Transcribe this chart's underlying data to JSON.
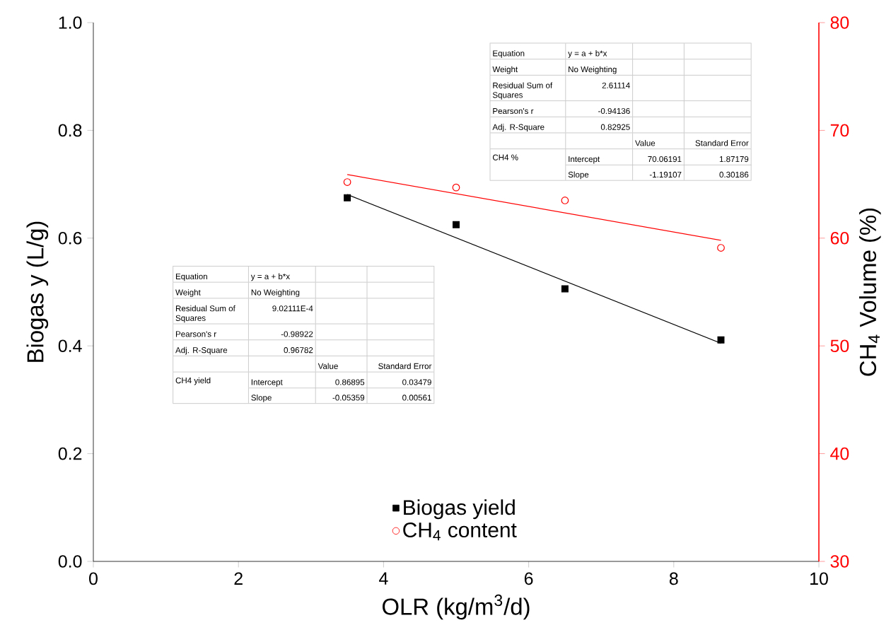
{
  "chart_data": {
    "type": "scatter",
    "xlabel": "OLR (kg/m$^{3}$/d)",
    "ylabel": "Biogas y (L/g)",
    "y2label": "CH$_{4}$ Volume (%)",
    "xlim": [
      0,
      10
    ],
    "xticks": [
      0,
      2,
      4,
      6,
      8,
      10
    ],
    "ylim": [
      0,
      1
    ],
    "yticks": [
      {
        "value": 0,
        "label": "0.0"
      },
      {
        "value": 0.2,
        "label": "0.2"
      },
      {
        "value": 0.4,
        "label": "0.4"
      },
      {
        "value": 0.6,
        "label": "0.6"
      },
      {
        "value": 0.8,
        "label": "0.8"
      },
      {
        "value": 1,
        "label": "1.0"
      }
    ],
    "y2lim": [
      30,
      80
    ],
    "y2ticks": [
      30,
      40,
      50,
      60,
      70,
      80
    ],
    "legend": "bottom",
    "series": [
      {
        "name": "Biogas yield",
        "marker": "square",
        "color": "#000000",
        "x": [
          3.5,
          5,
          6.5,
          8.65
        ],
        "values": [
          0.675,
          0.625,
          0.506,
          0.411
        ]
      },
      {
        "name": "CH$_{4}$ content",
        "marker": "circle",
        "color": "#ff0000",
        "axis": "y2",
        "x": [
          3.5,
          5,
          6.5,
          8.65
        ],
        "values": [
          65.2,
          64.7,
          63.5,
          59.1
        ]
      },
      {
        "type": "line",
        "marker": "none",
        "color": "#000000",
        "x": [
          3.5,
          8.65
        ],
        "values": [
          0.681,
          0.405
        ]
      },
      {
        "type": "line",
        "marker": "none",
        "color": "#ff0000",
        "axis": "y2",
        "x": [
          3.5,
          8.65
        ],
        "values": [
          65.9,
          59.8
        ]
      }
    ],
    "annotations": [
      "Equation",
      "y = a + b*x",
      "Weight",
      "No Weighting",
      "Residual Sum of Squares",
      "2.61114",
      "Pearson's r",
      "-0.94136",
      "Adj. R-Square",
      "0.82925",
      "Value",
      "Standard Error",
      "CH4 %",
      "Intercept",
      "70.06191",
      "1.87179",
      "Slope",
      "-1.19107",
      "0.30186",
      "Equation",
      "y = a + b*x",
      "Weight",
      "No Weighting",
      "Residual Sum of Squares",
      "9.02111E-4",
      "Pearson's r",
      "-0.98922",
      "Adj. R-Square",
      "0.96782",
      "Value",
      "Standard Error",
      "CH4 yield",
      "Intercept",
      "0.86895",
      "0.03479",
      "Slope",
      "-0.05359",
      "0.00561"
    ]
  }
}
